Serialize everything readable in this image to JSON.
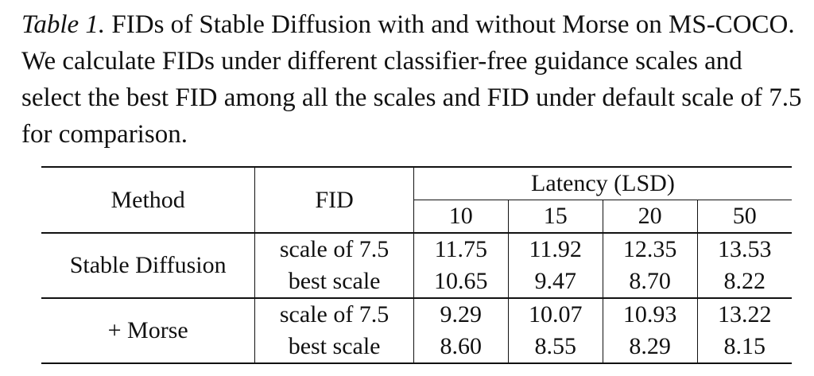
{
  "caption": {
    "label": "Table 1.",
    "text": " FIDs of Stable Diffusion with and without Morse on MS-COCO. We calculate FIDs under different classifier-free guidance scales and select the best FID among all the scales and FID under default scale of 7.5 for comparison."
  },
  "table": {
    "headers": {
      "method": "Method",
      "fid": "FID",
      "latency_group": "Latency (LSD)",
      "latencies": [
        "10",
        "15",
        "20",
        "50"
      ]
    },
    "groups": [
      {
        "method": "Stable Diffusion",
        "rows": [
          {
            "setting": "scale of 7.5",
            "values": [
              "11.75",
              "11.92",
              "12.35",
              "13.53"
            ],
            "bold": [
              true,
              false,
              false,
              false
            ]
          },
          {
            "setting": "best scale",
            "values": [
              "10.65",
              "9.47",
              "8.70",
              "8.22"
            ],
            "bold": [
              false,
              false,
              false,
              true
            ]
          }
        ]
      },
      {
        "method": "+ Morse",
        "rows": [
          {
            "setting": "scale of 7.5",
            "values": [
              "9.29",
              "10.07",
              "10.93",
              "13.22"
            ],
            "bold": [
              true,
              false,
              false,
              false
            ]
          },
          {
            "setting": "best scale",
            "values": [
              "8.60",
              "8.55",
              "8.29",
              "8.15"
            ],
            "bold": [
              false,
              false,
              false,
              true
            ]
          }
        ]
      }
    ]
  }
}
